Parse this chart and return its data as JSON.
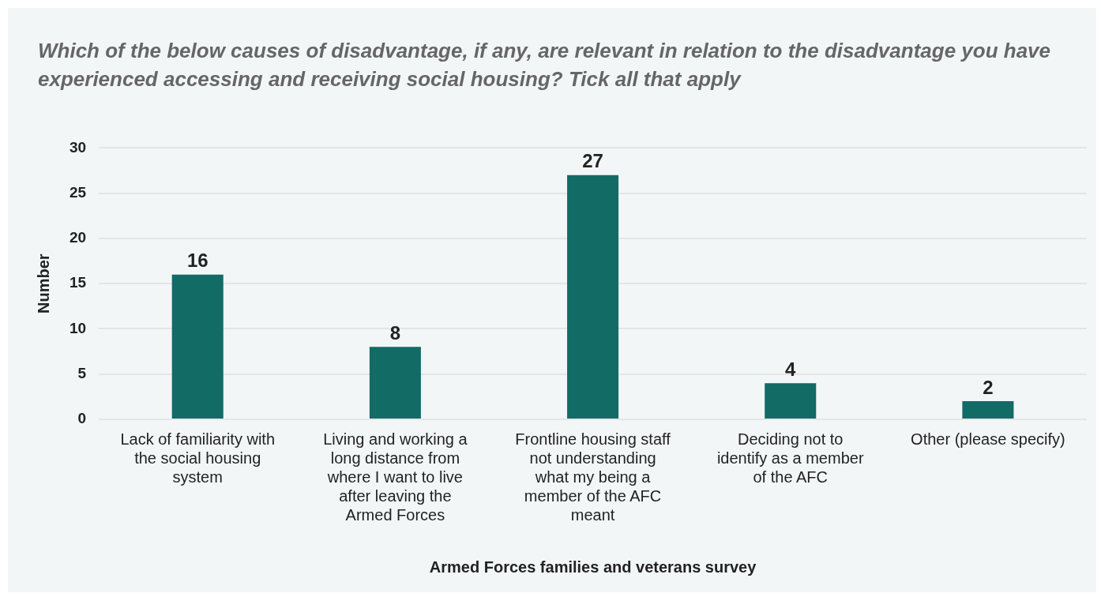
{
  "chart_data": {
    "type": "bar",
    "title": "Which of the below causes of disadvantage, if any, are relevant in relation to the disadvantage you have experienced accessing and receiving social housing? Tick all that apply",
    "categories": [
      "Lack of familiarity with the social housing system",
      "Living and working a long distance from where I want to live after leaving the Armed Forces",
      "Frontline housing staff not understanding what my being a member of the AFC meant",
      "Deciding not to identify as a member of the AFC",
      "Other (please specify)"
    ],
    "values": [
      16,
      8,
      27,
      4,
      2
    ],
    "color": "#136b66",
    "xlabel": "Armed Forces families and veterans survey",
    "ylabel": "Number",
    "ylim": [
      0,
      30
    ],
    "yticks": [
      0,
      5,
      10,
      15,
      20,
      25,
      30
    ],
    "grid": "y",
    "data_labels": true,
    "legend": false
  }
}
